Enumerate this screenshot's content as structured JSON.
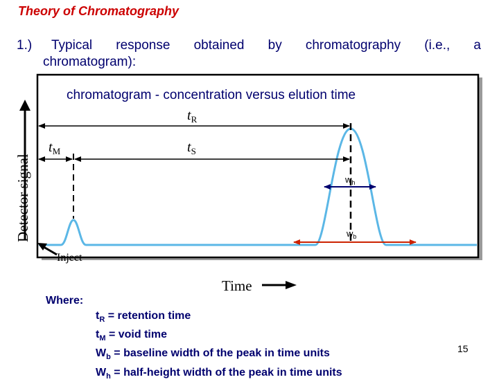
{
  "slide": {
    "title": "Theory of Chromatography",
    "item_number": "1.)",
    "item_words": [
      "Typical",
      "response",
      "obtained",
      "by",
      "chromatography",
      "(i.e.,",
      "a"
    ],
    "item_line2": "chromatogram):",
    "page_number": "15"
  },
  "figure": {
    "caption": "chromatogram  - concentration versus elution time",
    "y_axis_label": "Detector signal",
    "x_axis_label": "Time",
    "inject_label": "Inject",
    "tR_label": "t",
    "tR_sub": "R",
    "tM_label": "t",
    "tM_sub": "M",
    "tS_label": "t",
    "tS_sub": "S",
    "wh_label": "w",
    "wh_sub": "h",
    "wb_label": "w",
    "wb_sub": "b",
    "colors": {
      "trace": "#5bb7e6",
      "arrow_red": "#cc2200",
      "arrow_navy": "#00006e",
      "text_navy": "#00006e"
    }
  },
  "definitions": {
    "where_label": "Where:",
    "items": [
      {
        "sym": "t",
        "sub": "R",
        "text": " = retention time"
      },
      {
        "sym": "t",
        "sub": "M",
        "text": " = void time"
      },
      {
        "sym": "W",
        "sub": "b",
        "text": " = baseline width of the peak in time units"
      },
      {
        "sym": "W",
        "sub": "h",
        "text": " = half-height width of the peak in time units"
      }
    ]
  }
}
